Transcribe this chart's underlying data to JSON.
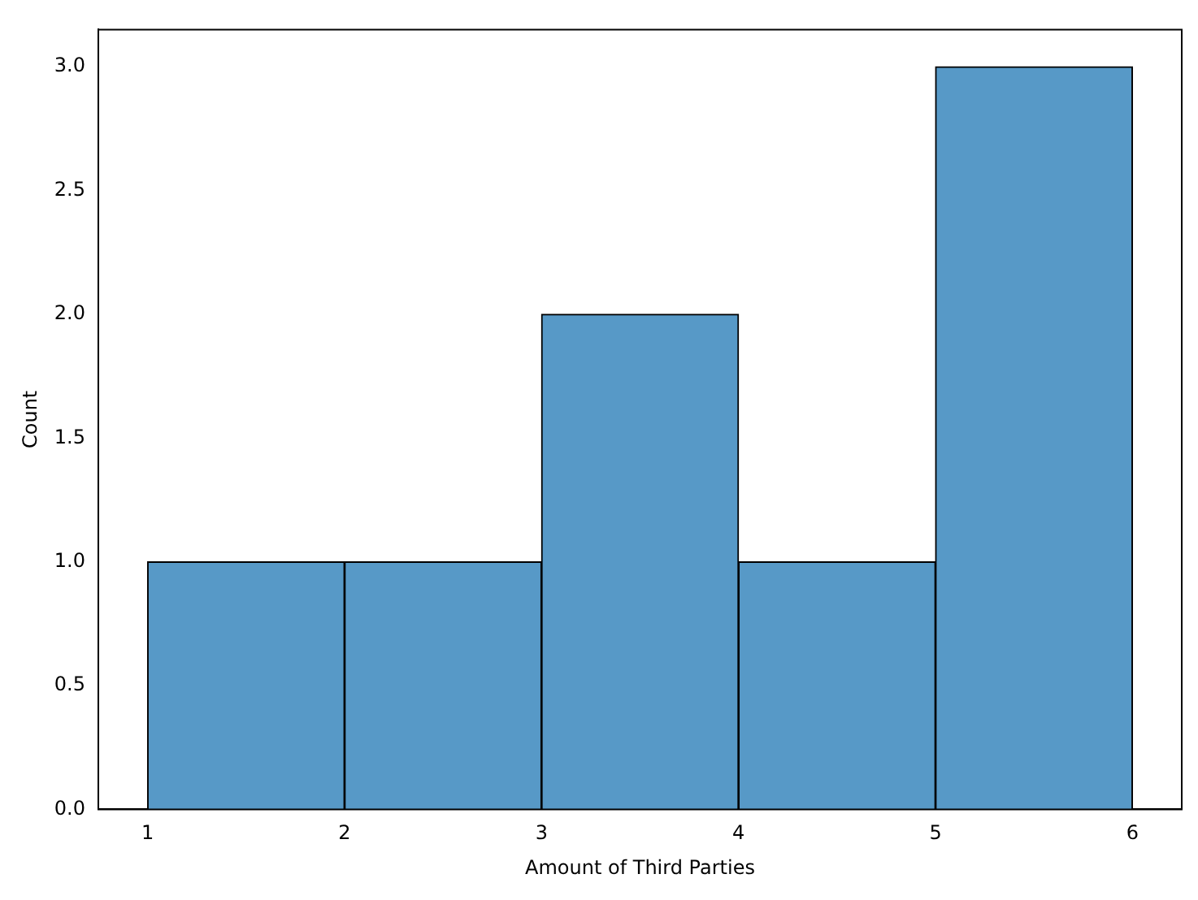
{
  "chart_data": {
    "type": "histogram",
    "xlabel": "Amount of Third Parties",
    "ylabel": "Count",
    "bins": [
      1,
      2,
      3,
      4,
      5,
      6
    ],
    "values": [
      1,
      1,
      2,
      1,
      3
    ],
    "color": "#5799c7",
    "xlim": [
      0.75,
      6.25
    ],
    "xticks": [
      1,
      2,
      3,
      4,
      5,
      6
    ],
    "ylim": [
      0,
      3.15
    ],
    "yticks": [
      {
        "value": 0,
        "label": "0.0"
      },
      {
        "value": 0.5,
        "label": "0.5"
      },
      {
        "value": 1,
        "label": "1.0"
      },
      {
        "value": 1.5,
        "label": "1.5"
      },
      {
        "value": 2,
        "label": "2.0"
      },
      {
        "value": 2.5,
        "label": "2.5"
      },
      {
        "value": 3,
        "label": "3.0"
      }
    ],
    "grid": false,
    "legend": false
  }
}
